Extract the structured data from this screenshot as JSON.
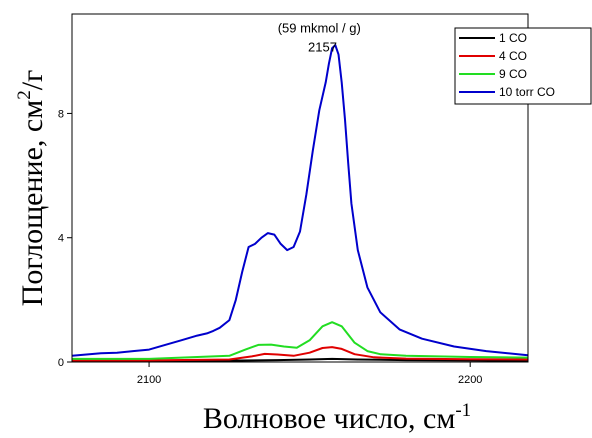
{
  "chart_data": {
    "type": "line",
    "xlabel_main": "Волновое число, см",
    "xlabel_sup": "-1",
    "ylabel_main": "Поглощение, см",
    "ylabel_sup": "2",
    "ylabel_tail": "/г",
    "xlim": [
      2076,
      2218
    ],
    "ylim": [
      0,
      11.2
    ],
    "x_ticks": [
      2100,
      2200
    ],
    "y_ticks": [
      0,
      4,
      8
    ],
    "grid": false,
    "legend_position": "top-right",
    "annotations": [
      {
        "text": "(59 mkmol / g)",
        "x": 2153,
        "y": 10.6
      },
      {
        "text": "2157",
        "x": 2154,
        "y": 10.0
      }
    ],
    "series": [
      {
        "name": "1 CO",
        "color": "#000000",
        "x": [
          2076,
          2100,
          2120,
          2140,
          2150,
          2157,
          2165,
          2180,
          2200,
          2218
        ],
        "y": [
          0.03,
          0.03,
          0.04,
          0.06,
          0.08,
          0.1,
          0.08,
          0.06,
          0.05,
          0.04
        ]
      },
      {
        "name": "4 CO",
        "color": "#e00000",
        "x": [
          2076,
          2100,
          2125,
          2132,
          2136,
          2140,
          2145,
          2150,
          2154,
          2157,
          2160,
          2164,
          2170,
          2180,
          2200,
          2218
        ],
        "y": [
          0.05,
          0.05,
          0.08,
          0.18,
          0.26,
          0.24,
          0.2,
          0.3,
          0.45,
          0.48,
          0.42,
          0.25,
          0.15,
          0.11,
          0.09,
          0.08
        ]
      },
      {
        "name": "9 CO",
        "color": "#22dd22",
        "x": [
          2076,
          2100,
          2125,
          2130,
          2134,
          2138,
          2142,
          2146,
          2150,
          2154,
          2157,
          2160,
          2164,
          2168,
          2172,
          2180,
          2200,
          2218
        ],
        "y": [
          0.1,
          0.1,
          0.2,
          0.4,
          0.55,
          0.56,
          0.5,
          0.46,
          0.7,
          1.15,
          1.28,
          1.15,
          0.62,
          0.35,
          0.25,
          0.2,
          0.16,
          0.14
        ]
      },
      {
        "name": "10 torr CO",
        "color": "#0000cc",
        "x": [
          2076,
          2085,
          2090,
          2095,
          2100,
          2105,
          2110,
          2115,
          2118,
          2120,
          2122,
          2125,
          2127,
          2129,
          2131,
          2133,
          2135,
          2137,
          2139,
          2141,
          2143,
          2145,
          2147,
          2149,
          2151,
          2153,
          2155,
          2156,
          2157,
          2158,
          2159,
          2160,
          2161,
          2162,
          2163,
          2165,
          2168,
          2172,
          2178,
          2185,
          2195,
          2205,
          2218
        ],
        "y": [
          0.2,
          0.28,
          0.3,
          0.35,
          0.4,
          0.55,
          0.7,
          0.85,
          0.92,
          1.0,
          1.1,
          1.35,
          2.0,
          2.9,
          3.7,
          3.8,
          4.0,
          4.15,
          4.1,
          3.8,
          3.6,
          3.7,
          4.2,
          5.4,
          6.8,
          8.1,
          9.0,
          9.6,
          10.1,
          10.2,
          9.9,
          9.0,
          7.8,
          6.4,
          5.1,
          3.6,
          2.4,
          1.6,
          1.05,
          0.75,
          0.5,
          0.35,
          0.22
        ]
      }
    ]
  }
}
